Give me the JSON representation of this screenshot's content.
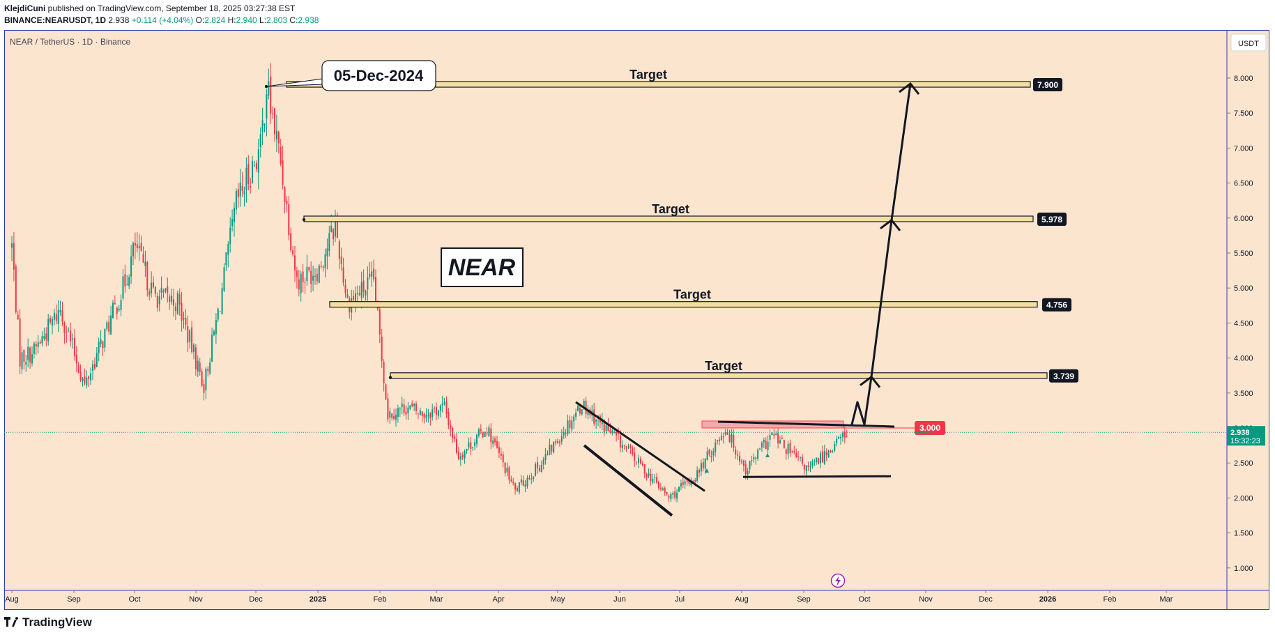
{
  "header": {
    "publisher": "KlejdiCuni",
    "published_text": " published on TradingView.com, September 18, 2025 03:27:38 EST",
    "symbol": "BINANCE:NEARUSDT, 1D",
    "last": "2.938",
    "change": "+0.114 (+4.04%)",
    "open_label": "O:",
    "open": "2.824",
    "high_label": "H:",
    "high": "2.940",
    "low_label": "L:",
    "low": "2.803",
    "close_label": "C:",
    "close": "2.938"
  },
  "chart_title": "NEAR / TetherUS · 1D · Binance",
  "currency": "USDT",
  "footer_brand": "TradingView",
  "colors": {
    "background": "#fbe5cf",
    "up": "#089981",
    "down": "#f23645",
    "frame": "#2f3cbc",
    "text": "#131722"
  },
  "price_scale": [
    "8.000",
    "7.500",
    "7.000",
    "6.500",
    "6.000",
    "5.500",
    "5.000",
    "4.500",
    "4.000",
    "3.500",
    "3.000",
    "2.500",
    "2.000",
    "1.500",
    "1.000"
  ],
  "time_scale": [
    "Aug",
    "Sep",
    "Oct",
    "Nov",
    "Dec",
    "2025",
    "Feb",
    "Mar",
    "Apr",
    "May",
    "Jun",
    "Jul",
    "Aug",
    "Sep",
    "Oct",
    "Nov",
    "Dec",
    "2026",
    "Feb",
    "Mar"
  ],
  "last_price_badge": {
    "price": "2.938",
    "countdown": "15:32:23"
  },
  "annotations": {
    "date_callout": "05-Dec-2024",
    "logo_text": "NEAR",
    "breakout_level": "3.000",
    "target_label": "Target"
  },
  "chart_data": {
    "type": "candlestick",
    "title": "NEAR / TetherUS · 1D · Binance",
    "ylim": [
      0.6,
      8.6
    ],
    "x_range": [
      "2024-07-31",
      "2026-03-31"
    ],
    "price_points": [
      [
        "2024-08-01",
        5.6
      ],
      [
        "2024-08-05",
        4.0
      ],
      [
        "2024-08-12",
        4.1
      ],
      [
        "2024-08-25",
        4.7
      ],
      [
        "2024-09-06",
        3.6
      ],
      [
        "2024-09-25",
        5.0
      ],
      [
        "2024-10-01",
        5.6
      ],
      [
        "2024-10-10",
        4.9
      ],
      [
        "2024-10-22",
        4.8
      ],
      [
        "2024-11-04",
        3.6
      ],
      [
        "2024-11-12",
        4.8
      ],
      [
        "2024-11-20",
        6.2
      ],
      [
        "2024-12-02",
        7.0
      ],
      [
        "2024-12-05",
        7.9
      ],
      [
        "2024-12-12",
        6.8
      ],
      [
        "2024-12-20",
        5.1
      ],
      [
        "2024-12-31",
        5.3
      ],
      [
        "2025-01-08",
        5.9
      ],
      [
        "2025-01-14",
        4.8
      ],
      [
        "2025-01-27",
        5.1
      ],
      [
        "2025-02-03",
        3.2
      ],
      [
        "2025-02-12",
        3.3
      ],
      [
        "2025-02-20",
        3.2
      ],
      [
        "2025-03-03",
        3.3
      ],
      [
        "2025-03-10",
        2.6
      ],
      [
        "2025-03-24",
        3.0
      ],
      [
        "2025-04-07",
        2.1
      ],
      [
        "2025-04-20",
        2.5
      ],
      [
        "2025-05-10",
        3.35
      ],
      [
        "2025-06-01",
        2.7
      ],
      [
        "2025-06-22",
        2.0
      ],
      [
        "2025-07-05",
        2.3
      ],
      [
        "2025-07-20",
        3.0
      ],
      [
        "2025-07-30",
        2.4
      ],
      [
        "2025-08-12",
        2.9
      ],
      [
        "2025-08-30",
        2.4
      ],
      [
        "2025-09-18",
        2.938
      ]
    ],
    "targets": [
      3.739,
      4.756,
      5.978,
      7.9
    ],
    "breakout_level": 3.0,
    "last_price": 2.938,
    "peak_date": "2024-12-05"
  }
}
